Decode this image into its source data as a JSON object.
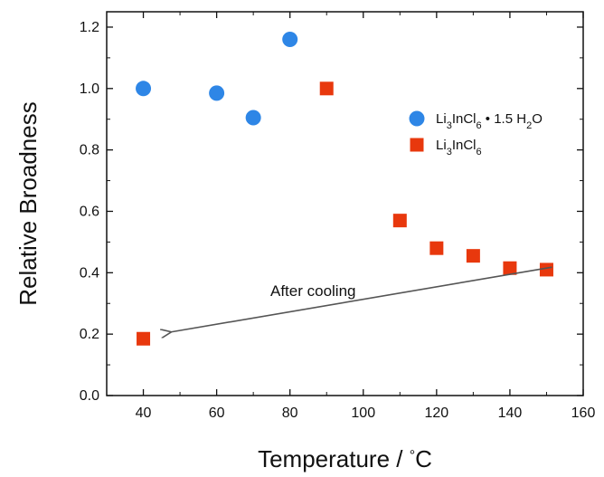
{
  "chart_data": {
    "type": "scatter",
    "title": "",
    "xlabel": "Temperature",
    "xlabel_unit": "°C",
    "xlabel_sep": "/",
    "ylabel": "Relative Broadness",
    "xlim": [
      30,
      160
    ],
    "ylim": [
      0.0,
      1.25
    ],
    "x_ticks": [
      40,
      60,
      80,
      100,
      120,
      140,
      160
    ],
    "x_minor_step": 10,
    "y_ticks": [
      0.0,
      0.2,
      0.4,
      0.6,
      0.8,
      1.0,
      1.2
    ],
    "y_minor_step": 0.1,
    "grid": false,
    "legend_position": "right-middle",
    "series": [
      {
        "name": "Li3InCl6 • 1.5 H2O",
        "legend": {
          "base": "Li",
          "sub1": "3",
          "mid": "InCl",
          "sub2": "6",
          "dot": "•",
          "water": "1.5 H",
          "sub3": "2",
          "end": "O"
        },
        "marker": "circle",
        "color": "#2e86e6",
        "x": [
          40,
          60,
          70,
          80
        ],
        "y": [
          1.0,
          0.985,
          0.905,
          1.16
        ]
      },
      {
        "name": "Li3InCl6",
        "legend": {
          "base": "Li",
          "sub1": "3",
          "mid": "InCl",
          "sub2": "6"
        },
        "marker": "square",
        "color": "#e8380d",
        "x": [
          90,
          110,
          120,
          130,
          140,
          150,
          40
        ],
        "y": [
          1.0,
          0.57,
          0.48,
          0.455,
          0.415,
          0.41,
          0.185
        ]
      }
    ],
    "annotations": [
      {
        "text": "After cooling",
        "arrow_from": [
          150,
          0.365
        ],
        "arrow_to": [
          42,
          0.195
        ],
        "color": "#555555"
      }
    ]
  }
}
